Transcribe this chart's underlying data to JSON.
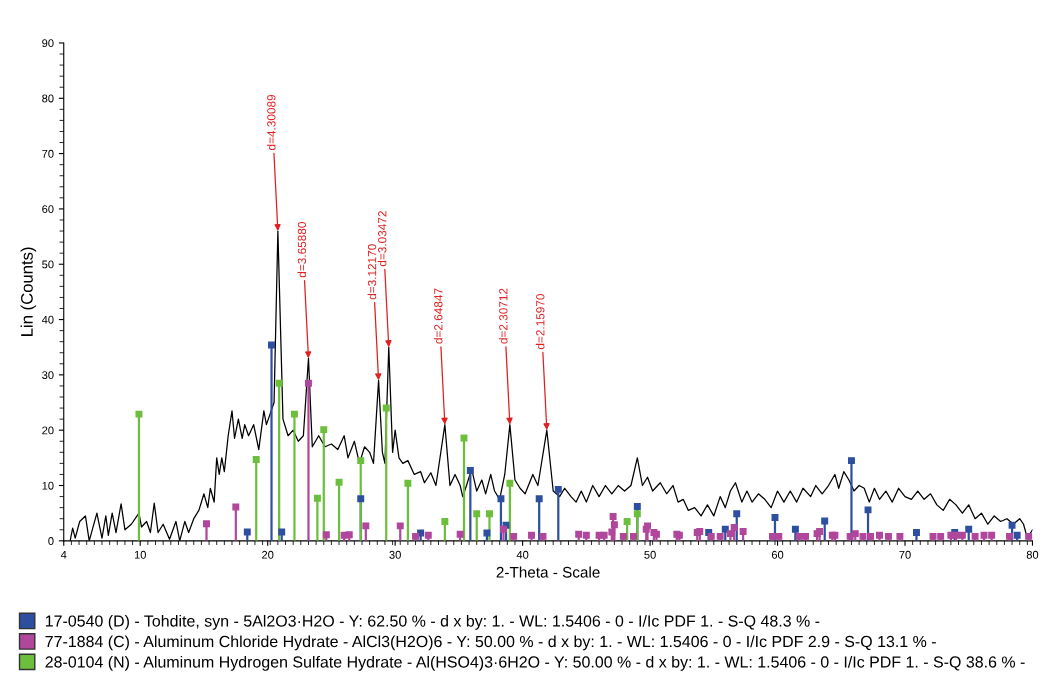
{
  "chart_data": {
    "type": "line",
    "xlabel": "2-Theta - Scale",
    "ylabel": "Lin (Counts)",
    "xlim": [
      4,
      80
    ],
    "xticks": [
      4,
      10,
      20,
      30,
      40,
      50,
      60,
      70,
      {
        "value": 80,
        "label": "80"
      }
    ],
    "ylim": [
      0,
      90
    ],
    "yticks": [
      0,
      10,
      20,
      30,
      40,
      50,
      60,
      70,
      80,
      90
    ],
    "grid": false,
    "legend": "bottom",
    "series": [
      {
        "color": "#000000",
        "marker": "none",
        "x": [
          4.5,
          4.7,
          4.9,
          5.25,
          5.7,
          6.0,
          6.6,
          7.0,
          7.3,
          7.5,
          7.8,
          8.1,
          8.5,
          8.8,
          9.3,
          9.9,
          10.1,
          10.5,
          10.8,
          11.1,
          11.4,
          11.8,
          12.3,
          12.8,
          13.1,
          13.5,
          13.8,
          14.2,
          14.6,
          15.0,
          15.3,
          15.5,
          15.8,
          16.0,
          16.2,
          16.4,
          16.6,
          16.9,
          17.2,
          17.4,
          17.7,
          18.0,
          18.2,
          18.5,
          18.9,
          19.3,
          19.7,
          19.9,
          20.2,
          20.5,
          20.8,
          21.2,
          21.6,
          22.0,
          22.4,
          22.8,
          23.2,
          23.5,
          24.0,
          24.5,
          25.0,
          25.5,
          26.0,
          26.3,
          26.8,
          27.2,
          27.6,
          28.0,
          28.3,
          28.7,
          29.0,
          29.2,
          29.5,
          29.8,
          30.0,
          30.3,
          30.6,
          31.0,
          31.5,
          32.0,
          32.3,
          32.8,
          33.2,
          33.9,
          34.3,
          34.7,
          35.1,
          35.3,
          35.6,
          36.0,
          36.4,
          36.8,
          37.1,
          37.5,
          37.8,
          38.2,
          38.6,
          39.0,
          39.4,
          39.8,
          40.2,
          40.8,
          41.2,
          41.9,
          42.4,
          42.9,
          43.3,
          43.8,
          44.2,
          44.6,
          45.0,
          45.5,
          46.0,
          46.5,
          47.0,
          47.5,
          48.0,
          48.5,
          49.0,
          49.4,
          49.8,
          50.2,
          50.8,
          51.3,
          51.8,
          52.2,
          52.6,
          53.0,
          53.5,
          54.0,
          54.5,
          55.0,
          55.5,
          55.9,
          56.3,
          56.7,
          57.2,
          57.6,
          58.0,
          58.5,
          59.0,
          59.5,
          60.0,
          60.5,
          61.0,
          61.5,
          62.0,
          62.6,
          63.0,
          63.5,
          64.0,
          64.5,
          64.8,
          65.2,
          65.6,
          66.0,
          66.4,
          66.8,
          67.2,
          67.6,
          68.0,
          68.5,
          69.0,
          69.5,
          70.0,
          70.5,
          71.0,
          71.5,
          72.0,
          72.5,
          73.0,
          73.5,
          74.0,
          74.5,
          75.0,
          75.5,
          76.0,
          76.5,
          77.0,
          77.5,
          78.0,
          78.5,
          79.0,
          79.3,
          79.6,
          80.0
        ],
        "values": [
          0,
          2.3,
          0.5,
          3.5,
          4.5,
          0,
          5,
          0.5,
          4.5,
          1,
          5,
          1.5,
          6.7,
          2,
          3,
          5,
          2.5,
          3.5,
          1.5,
          6.8,
          1.5,
          3,
          0.3,
          3.5,
          0,
          3.5,
          1.5,
          4,
          5.5,
          8.5,
          6,
          9.5,
          7,
          15,
          12,
          15,
          12.5,
          19,
          23.5,
          18.5,
          22,
          18.5,
          21,
          19,
          21,
          16.5,
          23.5,
          21,
          23,
          25,
          56,
          22,
          19,
          20,
          18,
          19,
          33,
          17,
          19,
          17,
          17.5,
          16.5,
          19,
          15,
          18,
          14,
          17,
          16,
          14,
          29,
          16,
          14,
          35,
          16,
          20,
          15,
          14,
          14.5,
          12,
          12.5,
          10.5,
          12.3,
          10,
          21,
          10,
          12,
          10,
          8,
          10,
          13,
          9,
          11,
          8.5,
          12,
          9,
          7.5,
          12,
          21,
          11,
          9.5,
          8.5,
          12,
          10,
          20,
          9,
          8,
          9.5,
          8,
          7,
          9,
          7,
          10,
          8,
          10,
          8.5,
          10,
          9,
          10,
          15,
          10,
          11.5,
          9,
          10.5,
          8.5,
          10,
          7,
          7.5,
          5.5,
          6,
          4.5,
          6.5,
          4.5,
          8,
          6,
          9,
          10.5,
          7,
          9,
          7,
          8.5,
          7.5,
          6,
          9,
          7,
          9,
          7,
          9.5,
          8,
          10,
          8.5,
          10,
          12,
          9.5,
          12.5,
          11,
          9,
          10,
          9.5,
          7,
          9.5,
          7.5,
          9,
          7,
          9.5,
          8,
          7.5,
          9,
          7.5,
          8.5,
          6.5,
          5.5,
          7.5,
          6.5,
          5,
          6.5,
          4,
          5,
          3,
          4.5,
          3.5,
          4,
          3,
          4,
          3,
          0.5,
          2
        ]
      },
      {
        "type": "lollipop",
        "name": "17-0540 (D) - Tohdite, syn - 5Al2O3·H2O - Y: 62.50 % - d x by: 1. - WL: 1.5406 - 0 - I/Ic PDF 1. - S-Q 48.3 % -",
        "color": "#2e4fa0",
        "marker": "square",
        "x": [
          18.4,
          20.3,
          21.1,
          27.3,
          32.0,
          35.9,
          37.2,
          38.3,
          38.7,
          41.3,
          42.8,
          49.0,
          54.6,
          55.9,
          56.8,
          59.8,
          61.4,
          63.7,
          65.8,
          67.1,
          70.9,
          73.9,
          75.0,
          78.4,
          78.8
        ],
        "values": [
          1.6,
          35.4,
          1.6,
          7.6,
          1.4,
          12.7,
          1.4,
          7.6,
          2.8,
          7.6,
          9.3,
          6.2,
          1.5,
          2.1,
          4.9,
          4.2,
          2.1,
          3.6,
          14.5,
          5.6,
          1.5,
          1.5,
          2.1,
          2.8,
          1.0
        ]
      },
      {
        "type": "lollipop",
        "name": "77-1884 (C) - Aluminum Chloride Hydrate - AlCl3(H2O)6 - Y: 50.00 % - d x by: 1. - WL: 1.5406 - 0 - I/Ic PDF 2.9 - S-Q 13.1 % -",
        "color": "#b0479c",
        "marker": "square",
        "x": [
          15.2,
          17.5,
          23.2,
          24.6,
          26.0,
          26.4,
          27.7,
          30.4,
          31.6,
          32.6,
          35.1,
          38.5,
          39.3,
          40.7,
          41.6,
          44.4,
          45.0,
          46.0,
          46.4,
          47.0,
          47.1,
          47.2,
          47.9,
          48.7,
          49.7,
          49.8,
          50.3,
          50.5,
          52.1,
          52.3,
          53.7,
          53.9,
          54.8,
          55.5,
          56.3,
          56.6,
          57.3,
          59.6,
          60.1,
          61.7,
          62.2,
          63.1,
          63.3,
          64.3,
          64.5,
          65.7,
          66.1,
          66.7,
          67.3,
          68.0,
          68.7,
          69.6,
          72.2,
          72.8,
          73.6,
          74.0,
          74.5,
          75.5,
          76.2,
          76.8,
          78.2,
          79.7
        ],
        "values": [
          3.1,
          6.1,
          28.5,
          1.1,
          1.0,
          1.1,
          2.7,
          2.7,
          0.8,
          1.0,
          1.2,
          2.1,
          0.8,
          1.0,
          0.8,
          1.2,
          1.0,
          1.0,
          1.0,
          1.6,
          4.4,
          2.9,
          0.8,
          0.8,
          2.1,
          2.7,
          1.5,
          1.2,
          1.2,
          1.0,
          1.5,
          1.7,
          0.8,
          0.8,
          1.3,
          2.4,
          1.7,
          0.8,
          0.8,
          0.8,
          0.8,
          1.3,
          1.7,
          1.0,
          1.0,
          0.8,
          1.3,
          0.8,
          0.8,
          1.0,
          0.8,
          0.8,
          0.8,
          0.8,
          1.0,
          1.0,
          1.0,
          0.8,
          1.0,
          1.0,
          0.8,
          0.8
        ]
      },
      {
        "type": "lollipop",
        "name": "28-0104 (N) - Aluminum Hydrogen Sulfate Hydrate - Al(HSO4)3·6H2O - Y: 50.00 % - d x by: 1. - WL: 1.5406 - 0 - I/Ic PDF 1. - S-Q 38.6 % -",
        "color": "#6cbf3c",
        "marker": "square",
        "x": [
          9.9,
          19.1,
          20.9,
          22.1,
          23.9,
          24.4,
          25.6,
          27.3,
          29.3,
          31.0,
          33.9,
          35.4,
          36.4,
          37.4,
          39.0,
          48.2,
          49.0
        ],
        "values": [
          22.9,
          14.7,
          28.5,
          22.9,
          7.7,
          20.1,
          10.6,
          14.5,
          24,
          10.4,
          3.5,
          18.6,
          4.9,
          4.9,
          10.4,
          3.5,
          4.9
        ]
      }
    ],
    "annotations": [
      {
        "text": "d=4.30089",
        "x": 20.8,
        "y": 56
      },
      {
        "text": "d=3.65880",
        "x": 23.2,
        "y": 33
      },
      {
        "text": "d=3.12170",
        "x": 28.7,
        "y": 29
      },
      {
        "text": "d=3.03472",
        "x": 29.5,
        "y": 35
      },
      {
        "text": "d=2.64847",
        "x": 33.9,
        "y": 21
      },
      {
        "text": "d=2.30712",
        "x": 39.0,
        "y": 21
      },
      {
        "text": "d=2.15970",
        "x": 41.9,
        "y": 20
      }
    ]
  }
}
